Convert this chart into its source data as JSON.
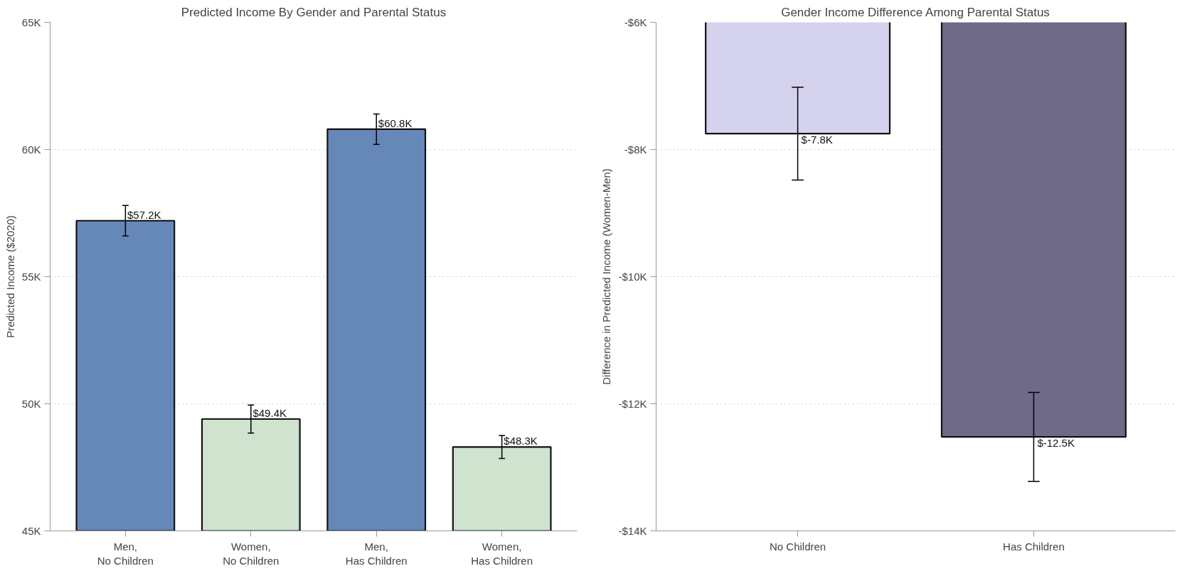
{
  "chart_data": [
    {
      "type": "bar",
      "title": "Predicted Income By Gender and Parental Status",
      "ylabel": "Predicted Income ($2020)",
      "categories": [
        "Men,\nNo Children",
        "Women,\nNo Children",
        "Men,\nHas Children",
        "Women,\nHas Children"
      ],
      "values": [
        57200,
        49400,
        60800,
        48300
      ],
      "colors": [
        "#6688b8",
        "#cfe3cf",
        "#6688b8",
        "#cfe3cf"
      ],
      "errors": [
        600,
        550,
        600,
        450
      ],
      "value_labels": [
        "$57.2K",
        "$49.4K",
        "$60.8K",
        "$48.3K"
      ],
      "ylim": [
        45000,
        65000
      ],
      "yticks": [
        {
          "value": 45000,
          "label": "45K"
        },
        {
          "value": 50000,
          "label": "50K"
        },
        {
          "value": 55000,
          "label": "55K"
        },
        {
          "value": 60000,
          "label": "60K"
        },
        {
          "value": 65000,
          "label": "65K"
        }
      ],
      "grid": "y"
    },
    {
      "type": "bar",
      "title": "Gender Income Difference Among Parental Status",
      "ylabel": "Difference in Predicted Income (Women-Men)",
      "categories": [
        "No Children",
        "Has Children"
      ],
      "values": [
        -7750,
        -12520
      ],
      "colors": [
        "#d5d2ee",
        "#6e6a88"
      ],
      "errors": [
        730,
        700
      ],
      "value_labels": [
        "$-7.8K",
        "$-12.5K"
      ],
      "ylim": [
        -14000,
        -6000
      ],
      "yticks": [
        {
          "value": -14000,
          "label": "-$14K"
        },
        {
          "value": -12000,
          "label": "-$12K"
        },
        {
          "value": -10000,
          "label": "-$10K"
        },
        {
          "value": -8000,
          "label": "-$8K"
        },
        {
          "value": -6000,
          "label": "-$6K"
        }
      ],
      "grid": "y"
    }
  ]
}
